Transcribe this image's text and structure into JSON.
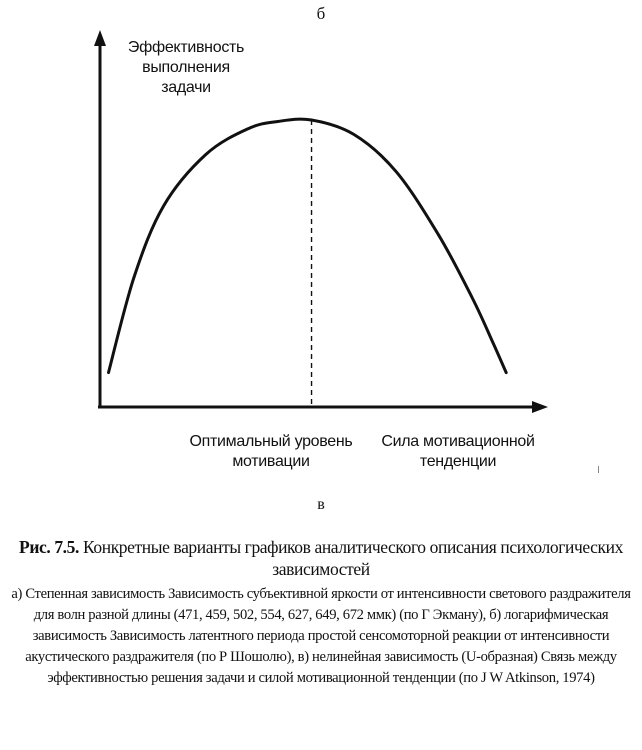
{
  "top_letter": "б",
  "bottom_letter": "в",
  "chart_data": {
    "type": "line",
    "ylabel": "Эффективность выполнения задачи",
    "xlabel": "Сила мотивационной тенденции",
    "optimum_label": "Оптимальный уровень мотивации",
    "optimum_x": 0.5,
    "series": [
      {
        "x": [
          0.02,
          0.08,
          0.15,
          0.25,
          0.35,
          0.42,
          0.5,
          0.6,
          0.7,
          0.8,
          0.88,
          0.93,
          0.96
        ],
        "values": [
          0.12,
          0.45,
          0.7,
          0.88,
          0.97,
          0.995,
          1.0,
          0.95,
          0.82,
          0.6,
          0.38,
          0.22,
          0.12
        ]
      }
    ],
    "xlim": [
      0,
      1.04
    ],
    "ylim": [
      0,
      1.15
    ]
  },
  "caption": {
    "figure_label": "Рис. 7.5.",
    "title": "Конкретные варианты графиков аналитического описания психологических зависимостей",
    "body": "а) Степенная зависимость Зависимость субъективной яркости от интенсивности светового раздражителя для волн разной длины (471, 459, 502, 554, 627, 649, 672 ммк) (по Г Экману), б) логарифмическая зависимость Зависимость латентного периода простой сенсомоторной реакции от интенсивности акустического раздражителя (по Р Шошолю), в) нелинейная зависимость (U-образная) Связь между эффективностью решения задачи и силой мотивационной тенденции (по J W Atkinson, 1974)"
  }
}
